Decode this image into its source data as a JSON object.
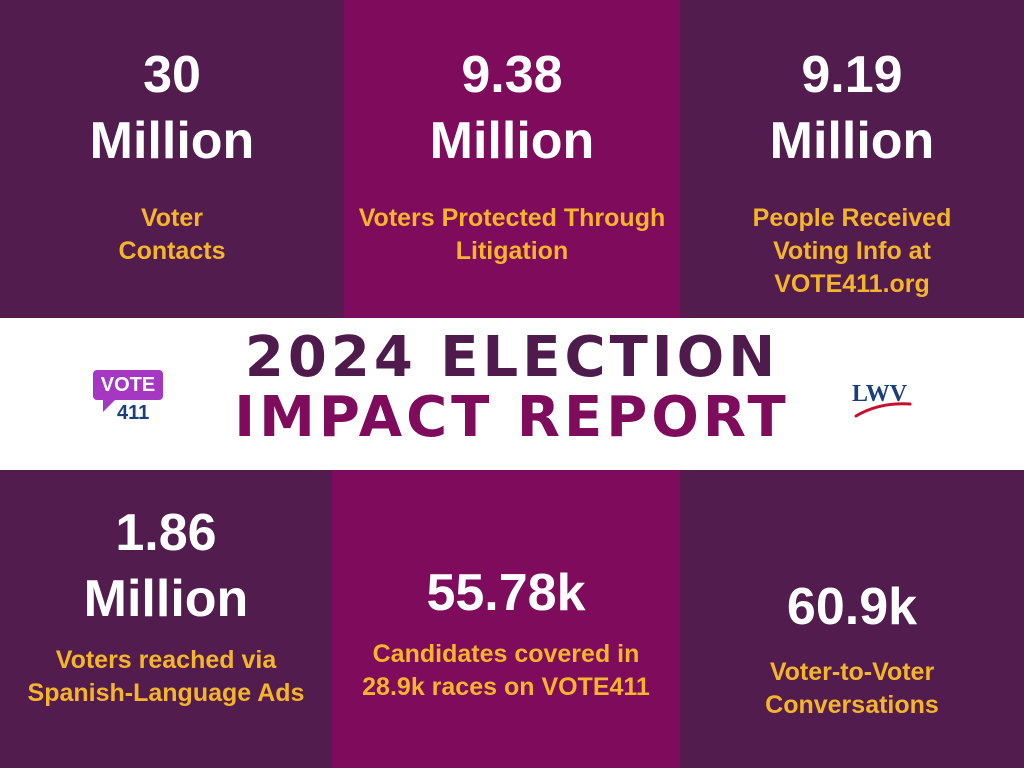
{
  "stats_top": [
    {
      "value": "30",
      "unit": "Million",
      "label": "Voter Contacts"
    },
    {
      "value": "9.38",
      "unit": "Million",
      "label": "Voters Protected Through Litigation"
    },
    {
      "value": "9.19",
      "unit": "Million",
      "label": "People Received Voting Info at VOTE411.org"
    }
  ],
  "banner": {
    "title_line1": "2024 ELECTION",
    "title_line2": "IMPACT REPORT",
    "vote_logo_text": "VOTE",
    "vote_logo_number": "411",
    "lwv_logo_text": "LWV"
  },
  "stats_bottom": [
    {
      "value": "1.86",
      "unit": "Million",
      "label": "Voters reached via Spanish-Language Ads"
    },
    {
      "value": "55.78k",
      "label": "Candidates covered in 28.9k races on VOTE411"
    },
    {
      "value": "60.9k",
      "label": "Voter-to-Voter Conversations"
    }
  ],
  "colors": {
    "dark_purple": "#521c4f",
    "magenta": "#7e0b5c",
    "accent_gold": "#f5b52a",
    "white": "#ffffff",
    "vote411_purple": "#a537c3",
    "lwv_blue": "#1b3f7a",
    "lwv_red": "#c8102e"
  }
}
